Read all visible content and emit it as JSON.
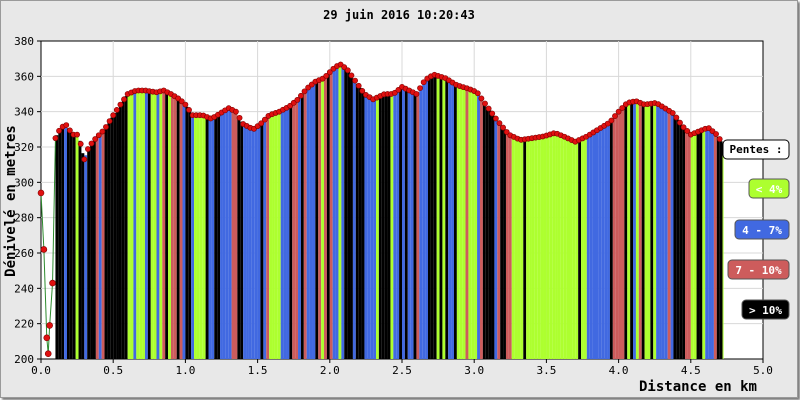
{
  "chart_data": {
    "type": "area",
    "title": "29 juin 2016 10:20:43",
    "xlabel": "Distance en km",
    "ylabel": "Dénivelé en metres",
    "xlim": [
      0,
      5
    ],
    "ylim": [
      200,
      380
    ],
    "x_ticks": [
      "0.0",
      "0.5",
      "1.0",
      "1.5",
      "2.0",
      "2.5",
      "3.0",
      "3.5",
      "4.0",
      "4.5",
      "5.0"
    ],
    "y_ticks": [
      "200",
      "220",
      "240",
      "260",
      "280",
      "300",
      "320",
      "340",
      "360",
      "380"
    ],
    "grid": true,
    "legend_position": "right",
    "legend": {
      "title": "Pentes :",
      "entries": [
        {
          "label": "< 4%",
          "color": "#adff2f"
        },
        {
          "label": "4 - 7%",
          "color": "#4169e1"
        },
        {
          "label": "7 - 10%",
          "color": "#cd5c5c"
        },
        {
          "label": "> 10%",
          "color": "#000000"
        }
      ]
    },
    "profile": [
      [
        0.0,
        294
      ],
      [
        0.02,
        262
      ],
      [
        0.04,
        212
      ],
      [
        0.05,
        203
      ],
      [
        0.06,
        219
      ],
      [
        0.08,
        243
      ],
      [
        0.1,
        325
      ],
      [
        0.13,
        330
      ],
      [
        0.17,
        333
      ],
      [
        0.22,
        327
      ],
      [
        0.26,
        327
      ],
      [
        0.3,
        313
      ],
      [
        0.33,
        320
      ],
      [
        0.38,
        325
      ],
      [
        0.44,
        330
      ],
      [
        0.5,
        338
      ],
      [
        0.55,
        344
      ],
      [
        0.6,
        350
      ],
      [
        0.66,
        352
      ],
      [
        0.72,
        352
      ],
      [
        0.8,
        351
      ],
      [
        0.85,
        352
      ],
      [
        0.9,
        350
      ],
      [
        0.96,
        347
      ],
      [
        1.0,
        344
      ],
      [
        1.05,
        338
      ],
      [
        1.12,
        338
      ],
      [
        1.18,
        336
      ],
      [
        1.24,
        339
      ],
      [
        1.3,
        342
      ],
      [
        1.35,
        340
      ],
      [
        1.4,
        333
      ],
      [
        1.47,
        330
      ],
      [
        1.52,
        333
      ],
      [
        1.58,
        338
      ],
      [
        1.65,
        340
      ],
      [
        1.72,
        343
      ],
      [
        1.78,
        347
      ],
      [
        1.84,
        353
      ],
      [
        1.9,
        357
      ],
      [
        1.96,
        359
      ],
      [
        2.02,
        364
      ],
      [
        2.07,
        367
      ],
      [
        2.12,
        364
      ],
      [
        2.18,
        357
      ],
      [
        2.24,
        350
      ],
      [
        2.3,
        347
      ],
      [
        2.38,
        350
      ],
      [
        2.44,
        350
      ],
      [
        2.5,
        354
      ],
      [
        2.55,
        352
      ],
      [
        2.6,
        350
      ],
      [
        2.66,
        358
      ],
      [
        2.72,
        361
      ],
      [
        2.8,
        359
      ],
      [
        2.88,
        355
      ],
      [
        2.96,
        353
      ],
      [
        3.02,
        351
      ],
      [
        3.08,
        344
      ],
      [
        3.16,
        335
      ],
      [
        3.24,
        327
      ],
      [
        3.32,
        324
      ],
      [
        3.4,
        325
      ],
      [
        3.48,
        326
      ],
      [
        3.56,
        328
      ],
      [
        3.62,
        326
      ],
      [
        3.7,
        323
      ],
      [
        3.78,
        326
      ],
      [
        3.86,
        330
      ],
      [
        3.94,
        334
      ],
      [
        4.0,
        340
      ],
      [
        4.06,
        345
      ],
      [
        4.12,
        346
      ],
      [
        4.18,
        344
      ],
      [
        4.26,
        345
      ],
      [
        4.32,
        342
      ],
      [
        4.38,
        339
      ],
      [
        4.44,
        332
      ],
      [
        4.5,
        327
      ],
      [
        4.56,
        329
      ],
      [
        4.62,
        331
      ],
      [
        4.68,
        327
      ],
      [
        4.72,
        322
      ]
    ],
    "slope_colors": [
      "#adff2f",
      "#4169e1",
      "#cd5c5c",
      "#000000"
    ],
    "band_width_km": 0.02
  }
}
